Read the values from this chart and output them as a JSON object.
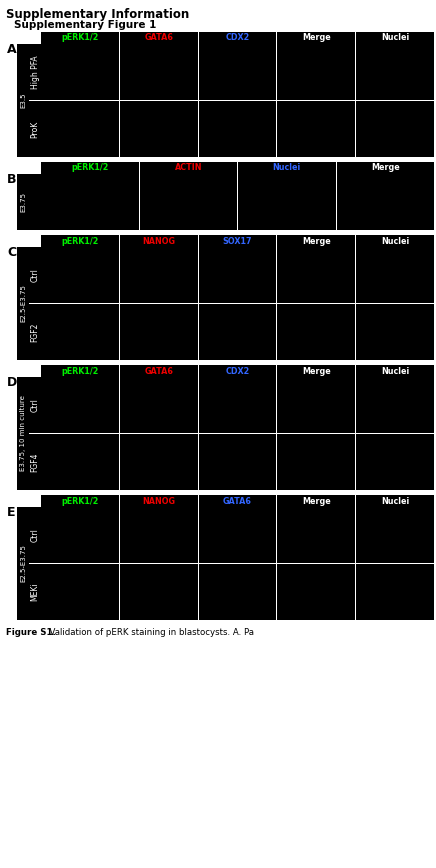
{
  "title_main": "Supplementary Information",
  "title_sub": "Supplementary Figure 1",
  "caption_bold": "Figure S1.",
  "caption_rest": "  Validation of pERK staining in blastocysts. A. Pa",
  "background": "#ffffff",
  "sections": [
    {
      "label": "A",
      "y_label": "E3.5",
      "row_labels": [
        "High PFA",
        "ProK"
      ],
      "col_labels": [
        "pERK1/2",
        "GATA6",
        "CDX2",
        "Merge",
        "Nuclei"
      ],
      "col_colors": [
        "#00ee00",
        "#ee0000",
        "#3366ff",
        "#ffffff",
        "#ffffff"
      ],
      "n_cols": 5,
      "n_rows": 2
    },
    {
      "label": "B",
      "y_label": "E3.75",
      "row_labels": [
        ""
      ],
      "col_labels": [
        "pERK1/2",
        "ACTIN",
        "Nuclei",
        "Merge"
      ],
      "col_colors": [
        "#00ee00",
        "#ee0000",
        "#3366ff",
        "#ffffff"
      ],
      "n_cols": 4,
      "n_rows": 1
    },
    {
      "label": "C",
      "y_label": "E2.5-E3.75",
      "row_labels": [
        "Ctrl",
        "FGF2"
      ],
      "col_labels": [
        "pERK1/2",
        "NANOG",
        "SOX17",
        "Merge",
        "Nuclei"
      ],
      "col_colors": [
        "#00ee00",
        "#ee0000",
        "#3366ff",
        "#ffffff",
        "#ffffff"
      ],
      "n_cols": 5,
      "n_rows": 2
    },
    {
      "label": "D",
      "y_label": "E3.75, 10 min culture",
      "row_labels": [
        "Ctrl",
        "FGF4"
      ],
      "col_labels": [
        "pERK1/2",
        "GATA6",
        "CDX2",
        "Merge",
        "Nuclei"
      ],
      "col_colors": [
        "#00ee00",
        "#ee0000",
        "#3366ff",
        "#ffffff",
        "#ffffff"
      ],
      "n_cols": 5,
      "n_rows": 2
    },
    {
      "label": "E",
      "y_label": "E2.5-E3.75",
      "row_labels": [
        "Ctrl",
        "MEKi"
      ],
      "col_labels": [
        "pERK1/2",
        "NANOG",
        "GATA6",
        "Merge",
        "Nuclei"
      ],
      "col_colors": [
        "#00ee00",
        "#ee0000",
        "#3366ff",
        "#ffffff",
        "#ffffff"
      ],
      "n_cols": 5,
      "n_rows": 2
    }
  ]
}
